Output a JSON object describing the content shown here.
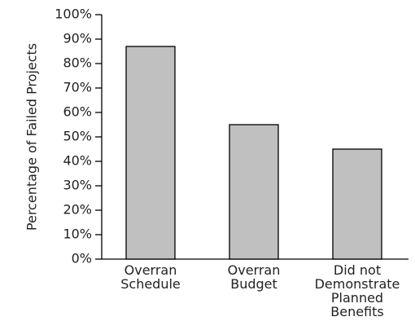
{
  "chart_data": {
    "type": "bar",
    "y_label": "Percentage of Failed Projects",
    "categories": [
      "Overran\nSchedule",
      "Overran\nBudget",
      "Did not\nDemonstrate\nPlanned\nBenefits"
    ],
    "values": [
      87,
      55,
      45
    ],
    "color": "#c0c0c0",
    "ylim": [
      0,
      100
    ],
    "yticks": [
      {
        "value": 0,
        "label": "0%"
      },
      {
        "value": 10,
        "label": "10%"
      },
      {
        "value": 20,
        "label": "20%"
      },
      {
        "value": 30,
        "label": "30%"
      },
      {
        "value": 40,
        "label": "40%"
      },
      {
        "value": 50,
        "label": "50%"
      },
      {
        "value": 60,
        "label": "60%"
      },
      {
        "value": 70,
        "label": "70%"
      },
      {
        "value": 80,
        "label": "80%"
      },
      {
        "value": 90,
        "label": "90%"
      },
      {
        "value": 100,
        "label": "100%"
      }
    ],
    "grid": false
  }
}
